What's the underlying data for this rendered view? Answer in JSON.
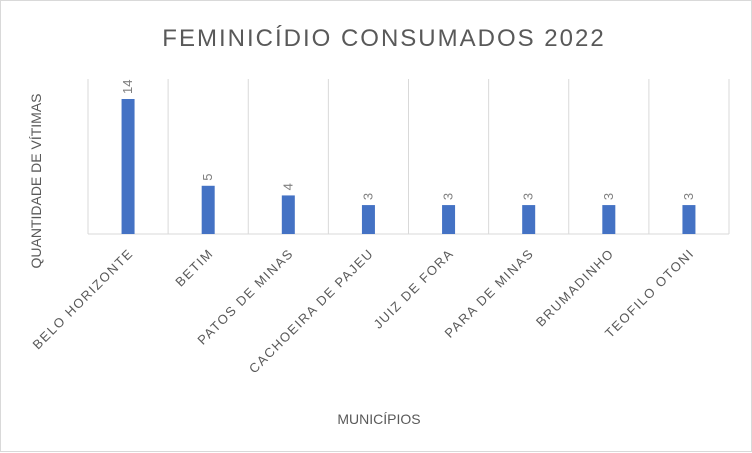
{
  "chart_data": {
    "type": "bar",
    "title": "FEMINICÍDIO  CONSUMADOS  2022",
    "xlabel": "MUNICÍPIOS",
    "ylabel": "QUANTIDADE DE VÍTIMAS",
    "categories": [
      "BELO HORIZONTE",
      "BETIM",
      "PATOS DE MINAS",
      "CACHOEIRA DE PAJEU",
      "JUIZ DE FORA",
      "PARA DE MINAS",
      "BRUMADINHO",
      "TEOFILO OTONI"
    ],
    "values": [
      14,
      5,
      4,
      3,
      3,
      3,
      3,
      3
    ],
    "ylim": [
      0,
      14
    ],
    "grid": "vertical",
    "legend": "none",
    "bar_color": "#4472c4",
    "grid_color": "#d9d9d9"
  }
}
